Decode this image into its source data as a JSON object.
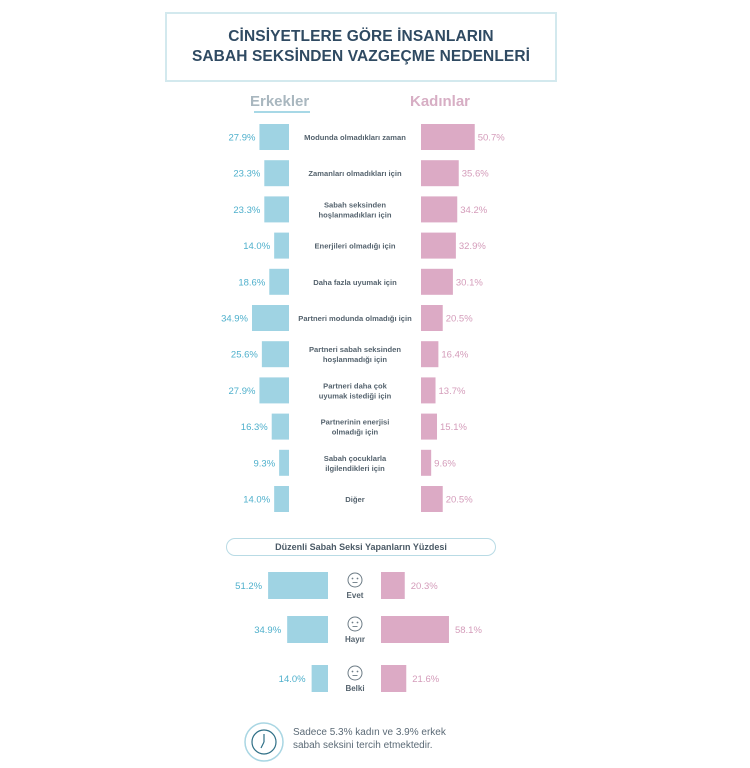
{
  "title": {
    "line1": "CİNSİYETLERE GÖRE İNSANLARIN",
    "line2": "SABAH SEKSİNDEN VAZGEÇME NEDENLERİ"
  },
  "legend": {
    "men": "Erkekler",
    "women": "Kadınlar"
  },
  "colors": {
    "men": "#9fd3e3",
    "women": "#dcaac5",
    "men_text": "#4fb0cc",
    "women_text": "#d49cba"
  },
  "chart_data": [
    {
      "type": "bar",
      "orientation": "horizontal-butterfly",
      "title": "CİNSİYETLERE GÖRE İNSANLARIN SABAH SEKSİNDEN VAZGEÇME NEDENLERİ",
      "categories": [
        [
          "Modunda olmadıkları zaman"
        ],
        [
          "Zamanları olmadıkları için"
        ],
        [
          "Sabah seksinden",
          "hoşlanmadıkları için"
        ],
        [
          "Enerjileri olmadığı için"
        ],
        [
          "Daha fazla uyumak için"
        ],
        [
          "Partneri modunda olmadığı için"
        ],
        [
          "Partneri sabah seksinden",
          "hoşlanmadığı için"
        ],
        [
          "Partneri daha çok",
          "uyumak istediği için"
        ],
        [
          "Partnerinin enerjisi",
          "olmadığı için"
        ],
        [
          "Sabah çocuklarla",
          "ilgilendikleri için"
        ],
        [
          "Diğer"
        ]
      ],
      "series": [
        {
          "name": "Erkekler",
          "values": [
            27.9,
            23.3,
            23.3,
            14.0,
            18.6,
            34.9,
            25.6,
            27.9,
            16.3,
            9.3,
            14.0
          ],
          "labels": [
            "27.9%",
            "23.3%",
            "23.3%",
            "14.0%",
            "18.6%",
            "34.9%",
            "25.6%",
            "27.9%",
            "16.3%",
            "9.3%",
            "14.0%"
          ]
        },
        {
          "name": "Kadınlar",
          "values": [
            50.7,
            35.6,
            34.2,
            32.9,
            30.1,
            20.5,
            16.4,
            13.7,
            15.1,
            9.6,
            20.5
          ],
          "labels": [
            "50.7%",
            "35.6%",
            "34.2%",
            "32.9%",
            "30.1%",
            "20.5%",
            "16.4%",
            "13.7%",
            "15.1%",
            "9.6%",
            "20.5%"
          ]
        }
      ]
    },
    {
      "type": "bar",
      "orientation": "horizontal-butterfly",
      "title": "Düzenli Sabah Seksi Yapanların Yüzdesi",
      "categories": [
        "Evet",
        "Hayır",
        "Belki"
      ],
      "series": [
        {
          "name": "Erkekler",
          "values": [
            51.2,
            34.9,
            14.0
          ],
          "labels": [
            "51.2%",
            "34.9%",
            "14.0%"
          ]
        },
        {
          "name": "Kadınlar",
          "values": [
            20.3,
            58.1,
            21.6
          ],
          "labels": [
            "20.3%",
            "58.1%",
            "21.6%"
          ]
        }
      ]
    }
  ],
  "note": {
    "line1": "Sadece 5.3% kadın ve 3.9% erkek",
    "line2": "sabah seksini tercih etmektedir."
  }
}
